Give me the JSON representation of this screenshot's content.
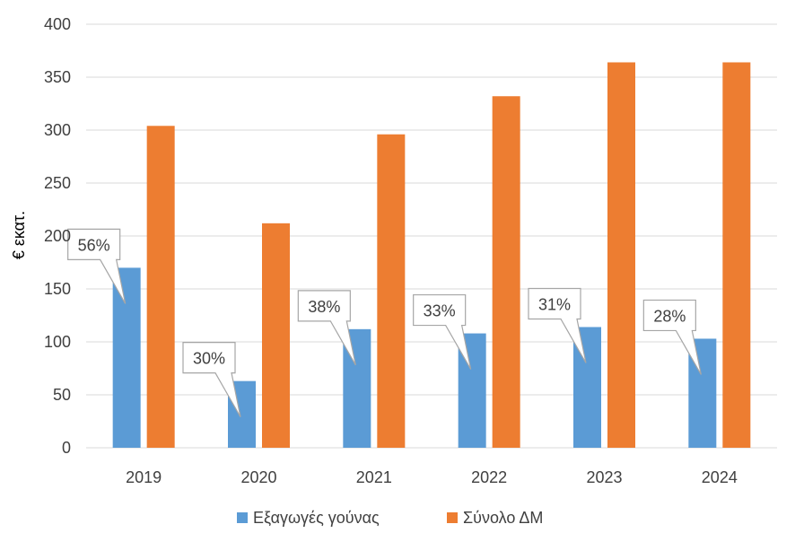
{
  "chart_data": {
    "type": "bar",
    "categories": [
      "2019",
      "2020",
      "2021",
      "2022",
      "2023",
      "2024"
    ],
    "series": [
      {
        "name": "Εξαγωγές γούνας",
        "color": "#5B9BD5",
        "values": [
          170,
          63,
          112,
          108,
          114,
          103
        ]
      },
      {
        "name": "Σύνολο ΔΜ",
        "color": "#ED7D31",
        "values": [
          304,
          212,
          296,
          332,
          364,
          364
        ]
      }
    ],
    "annotations": [
      "56%",
      "30%",
      "38%",
      "33%",
      "31%",
      "28%"
    ],
    "ylabel": "€ εκατ.",
    "ylim": [
      0,
      400
    ],
    "yticks": [
      0,
      50,
      100,
      150,
      200,
      250,
      300,
      350,
      400
    ],
    "grid": true,
    "legend_position": "bottom"
  }
}
